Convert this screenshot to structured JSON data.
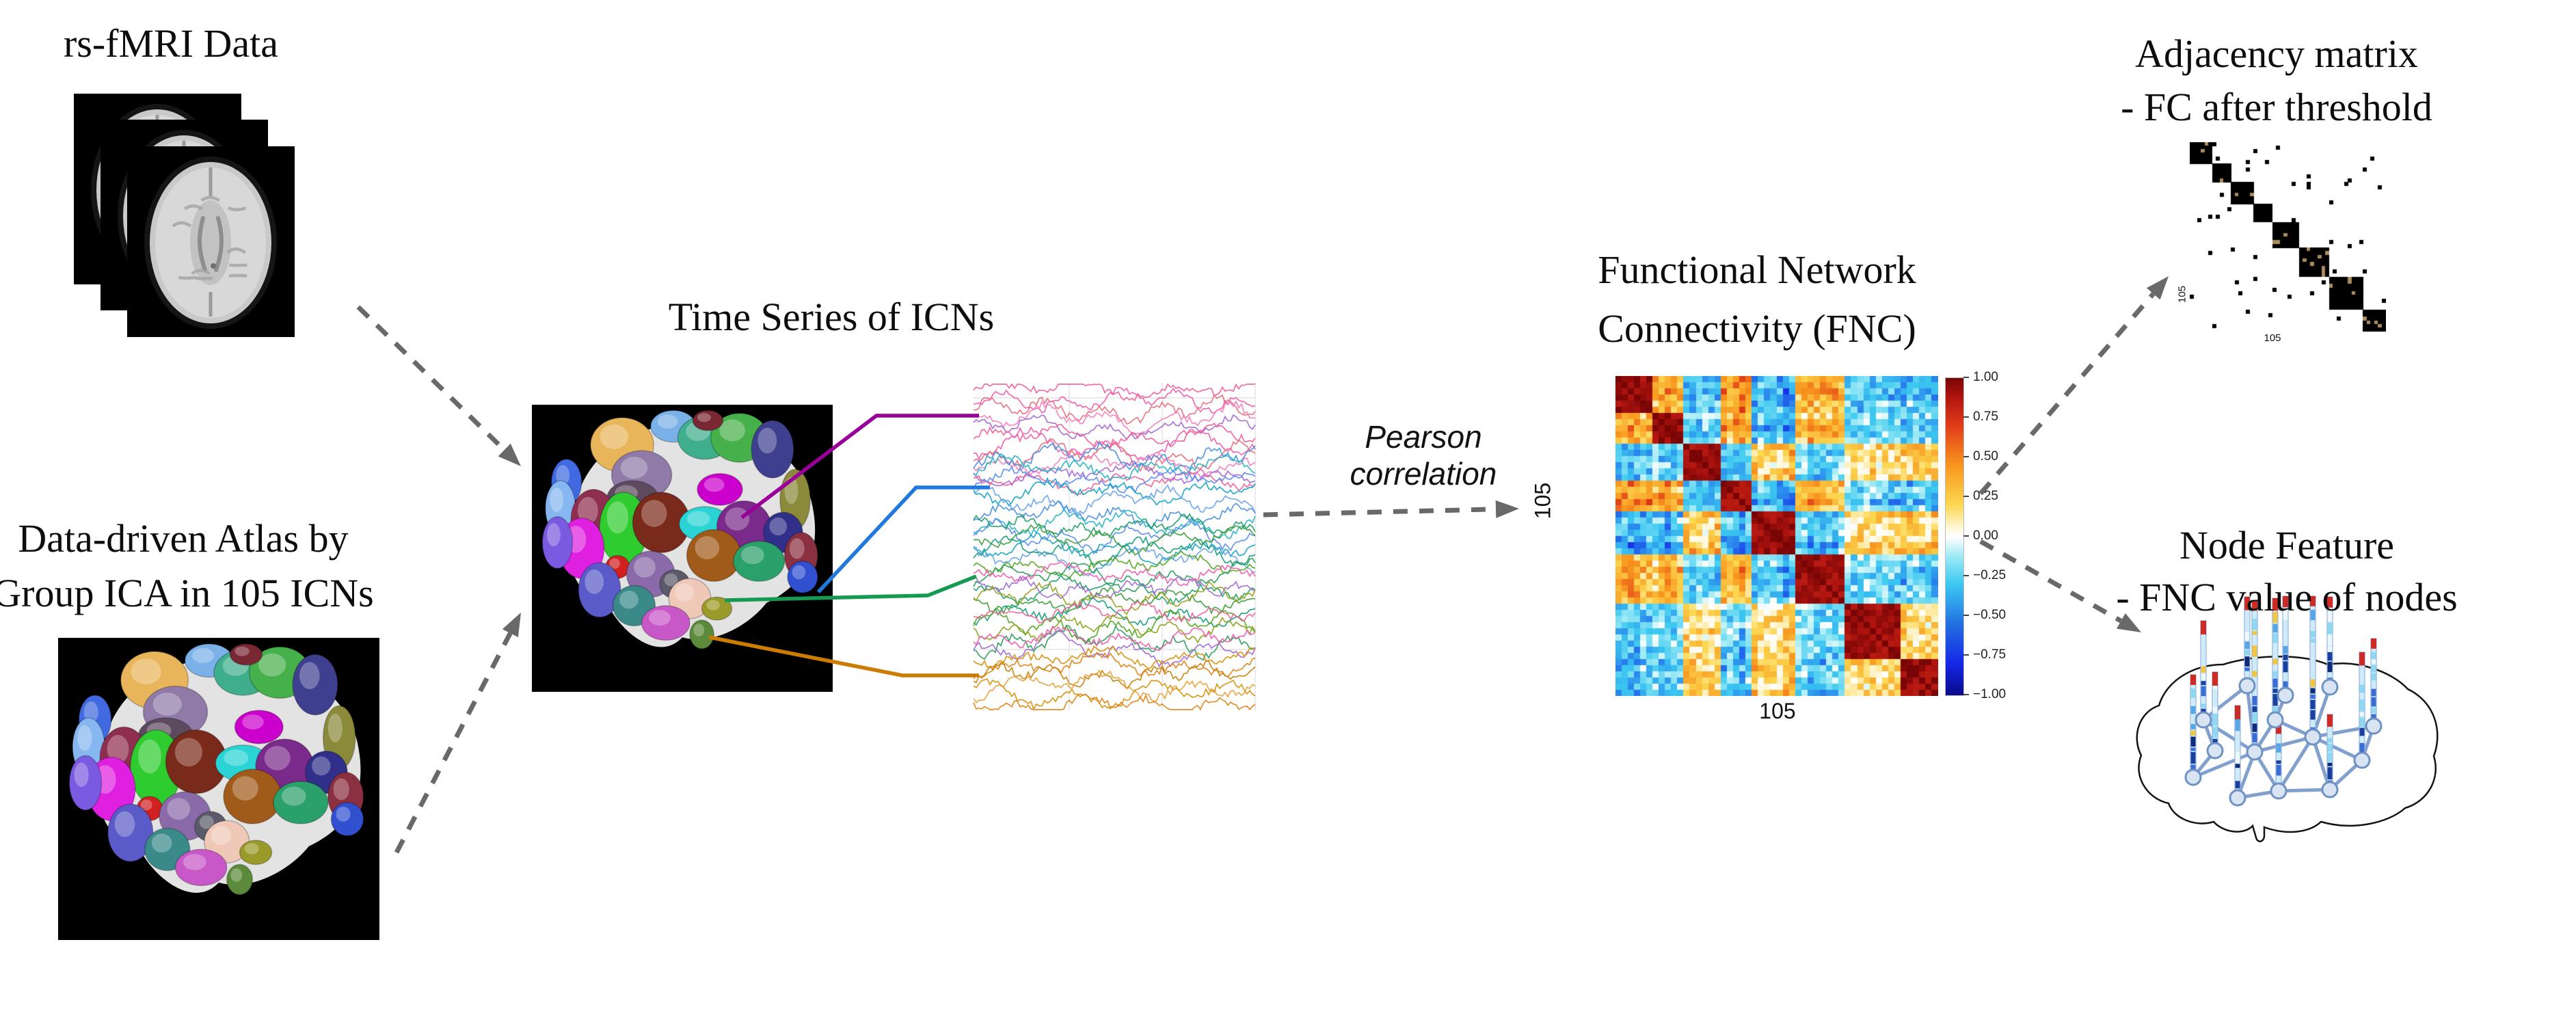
{
  "panels": {
    "rsfmri": {
      "title": "rs-fMRI Data"
    },
    "atlas": {
      "title": [
        "Data-driven Atlas by",
        "Group ICA in 105 ICNs"
      ]
    },
    "timeseries": {
      "title": "Time Series of ICNs"
    },
    "pearson": {
      "label": [
        "Pearson",
        "correlation"
      ]
    },
    "fnc": {
      "title": [
        "Functional Network",
        "Connectivity (FNC)"
      ],
      "y_label": "105",
      "x_label": "105",
      "colorbar_ticks": [
        "1.00",
        "0.75",
        "0.50",
        "0.25",
        "0.00",
        "−0.25",
        "−0.50",
        "−0.75",
        "−1.00"
      ],
      "value_range": {
        "min": -1,
        "max": 1
      }
    },
    "adjacency": {
      "title": [
        "Adjacency matrix",
        "- FC after threshold"
      ],
      "y_label": "105",
      "x_label": "105"
    },
    "node_feature": {
      "title": [
        "Node Feature",
        "- FNC value of nodes"
      ]
    }
  },
  "colors": {
    "arrow_gray": "#696969",
    "connectors": {
      "purple": "#990099",
      "blue": "#2279dd",
      "green": "#169a52",
      "orange": "#cc7c00"
    },
    "graph": {
      "edge": "#7b9bcc",
      "node_fill": "#d9e4f3",
      "node_stroke": "#6f92c4",
      "outline": "#141414"
    },
    "heatmap_max_color": "#780505",
    "heatmap_min_color": "#0a0a8c"
  },
  "timeseries_groups": [
    {
      "name": "pink",
      "count": 11,
      "palette": [
        "#f0629b",
        "#ee5fae",
        "#e8707e",
        "#f481bd",
        "#a36ad6"
      ]
    },
    {
      "name": "blue",
      "count": 10,
      "palette": [
        "#4a90e2",
        "#29b5c8",
        "#5b8def",
        "#19a4c8",
        "#6aa5ee"
      ]
    },
    {
      "name": "green",
      "count": 10,
      "palette": [
        "#22a06b",
        "#3da03d",
        "#19a07d",
        "#55a822",
        "#2f9e5e"
      ]
    },
    {
      "name": "mixed",
      "count": 7,
      "palette": [
        "#ee5fae",
        "#a36ad6",
        "#9aa322",
        "#f0629b",
        "#8fa21c"
      ]
    },
    {
      "name": "orange",
      "count": 6,
      "palette": [
        "#d9930d",
        "#e0861a",
        "#c9820a",
        "#e8a33d"
      ]
    }
  ]
}
